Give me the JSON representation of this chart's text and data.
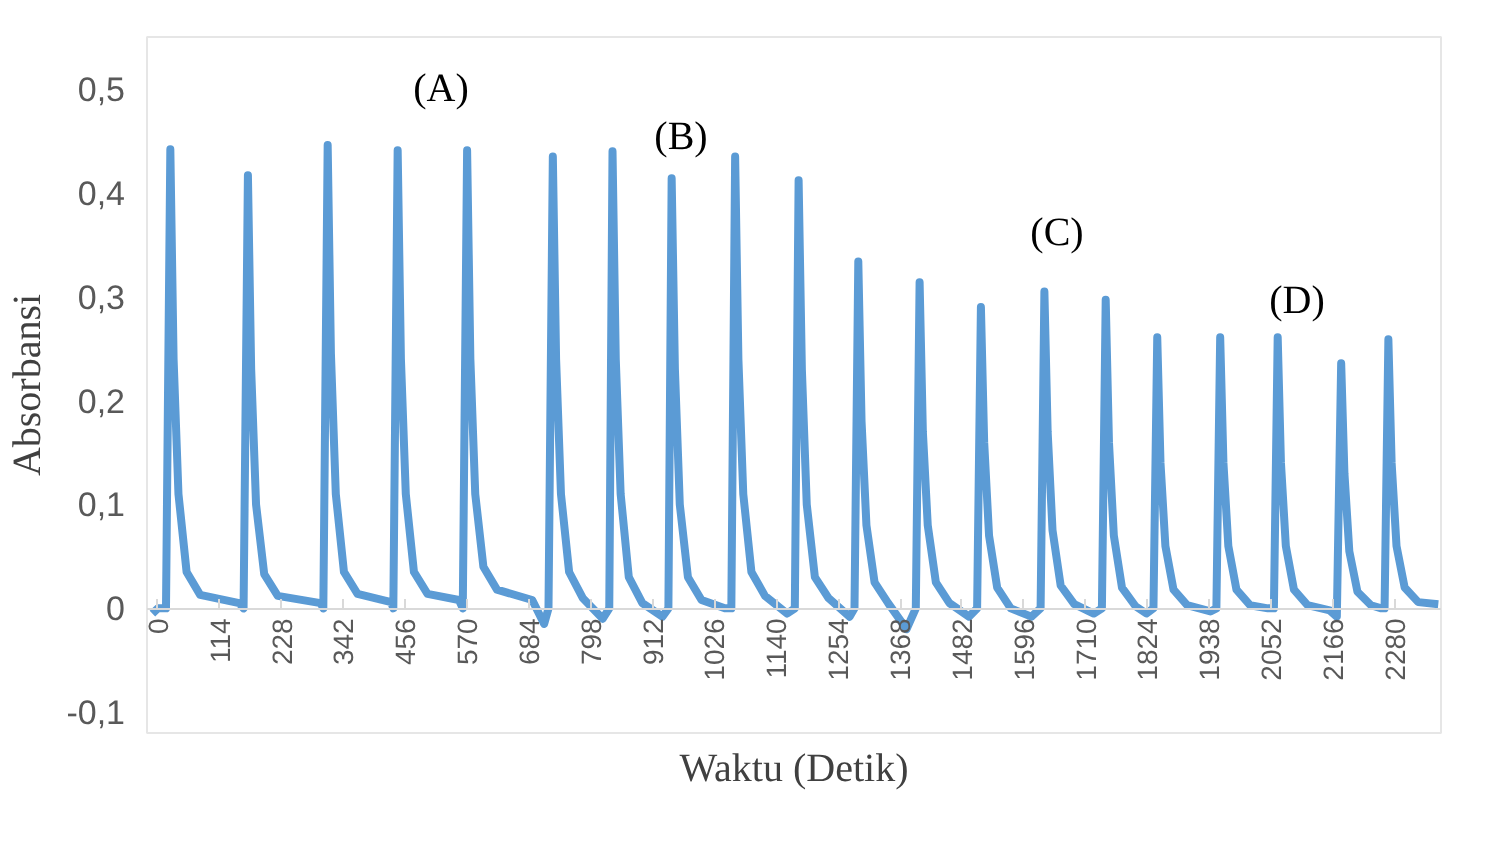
{
  "chart_data": {
    "type": "line",
    "xlabel": "Waktu (Detik)",
    "ylabel": "Absorbansi",
    "xlim": [
      -20,
      2365
    ],
    "ylim": [
      -0.12,
      0.55
    ],
    "xticks": [
      0,
      114,
      228,
      342,
      456,
      570,
      684,
      798,
      912,
      1026,
      1140,
      1254,
      1368,
      1482,
      1596,
      1710,
      1824,
      1938,
      2052,
      2166,
      2280
    ],
    "yticks": [
      {
        "value": -0.1,
        "label": "-0,1"
      },
      {
        "value": 0,
        "label": "0"
      },
      {
        "value": 0.1,
        "label": "0,1"
      },
      {
        "value": 0.2,
        "label": "0,2"
      },
      {
        "value": 0.3,
        "label": "0,3"
      },
      {
        "value": 0.4,
        "label": "0,4"
      },
      {
        "value": 0.5,
        "label": "0,5"
      }
    ],
    "grid": false,
    "marker": "none",
    "line_style": "solid",
    "annotations": [
      "(A)",
      "(B)",
      "(C)",
      "(D)"
    ],
    "series": [
      {
        "color": "#5b9bd5",
        "x": [
          -10,
          0,
          15,
          23,
          29,
          38,
          53,
          78,
          150,
          158,
          166,
          172,
          181,
          196,
          221,
          300,
          305,
          313,
          319,
          328,
          343,
          368,
          430,
          434,
          442,
          448,
          457,
          472,
          497,
          555,
          562,
          570,
          576,
          585,
          600,
          625,
          690,
          712,
          720,
          728,
          734,
          743,
          758,
          783,
          820,
          832,
          838,
          844,
          853,
          868,
          893,
          930,
          941,
          947,
          953,
          962,
          977,
          1002,
          1045,
          1057,
          1064,
          1070,
          1079,
          1094,
          1119,
          1160,
          1174,
          1181,
          1187,
          1196,
          1211,
          1236,
          1275,
          1284,
          1291,
          1297,
          1306,
          1321,
          1346,
          1380,
          1397,
          1404,
          1410,
          1419,
          1434,
          1459,
          1495,
          1510,
          1517,
          1523,
          1532,
          1547,
          1572,
          1610,
          1627,
          1634,
          1640,
          1649,
          1664,
          1689,
          1725,
          1740,
          1747,
          1753,
          1762,
          1777,
          1802,
          1822,
          1835,
          1842,
          1848,
          1857,
          1872,
          1897,
          1940,
          1951,
          1958,
          1964,
          1973,
          1988,
          2013,
          2046,
          2057,
          2064,
          2070,
          2079,
          2094,
          2119,
          2160,
          2173,
          2181,
          2187,
          2196,
          2211,
          2236,
          2255,
          2261,
          2268,
          2274,
          2283,
          2298,
          2323,
          2360
        ],
        "values": [
          -0.005,
          0.0,
          0.0,
          0.442,
          0.24,
          0.11,
          0.035,
          0.013,
          0.005,
          0.0,
          0.417,
          0.23,
          0.1,
          0.033,
          0.012,
          0.005,
          0.0,
          0.446,
          0.245,
          0.11,
          0.035,
          0.014,
          0.006,
          0.0,
          0.441,
          0.24,
          0.11,
          0.035,
          0.014,
          0.008,
          0.0,
          0.441,
          0.24,
          0.11,
          0.04,
          0.018,
          0.008,
          -0.015,
          0.0,
          0.435,
          0.24,
          0.11,
          0.035,
          0.01,
          -0.01,
          0.0,
          0.44,
          0.24,
          0.11,
          0.03,
          0.005,
          -0.008,
          0.0,
          0.414,
          0.23,
          0.1,
          0.03,
          0.008,
          0.0,
          0.0,
          0.435,
          0.24,
          0.11,
          0.035,
          0.012,
          -0.005,
          0.0,
          0.412,
          0.23,
          0.1,
          0.03,
          0.01,
          -0.008,
          0.0,
          0.334,
          0.18,
          0.08,
          0.025,
          0.005,
          -0.02,
          0.0,
          0.314,
          0.17,
          0.08,
          0.025,
          0.005,
          -0.008,
          0.0,
          0.29,
          0.16,
          0.07,
          0.02,
          0.0,
          -0.008,
          0.0,
          0.305,
          0.17,
          0.075,
          0.022,
          0.004,
          -0.005,
          0.0,
          0.297,
          0.16,
          0.07,
          0.02,
          0.002,
          -0.005,
          0.0,
          0.261,
          0.14,
          0.06,
          0.018,
          0.003,
          -0.003,
          0.0,
          0.261,
          0.14,
          0.06,
          0.018,
          0.003,
          0.0,
          0.0,
          0.261,
          0.14,
          0.06,
          0.018,
          0.003,
          -0.002,
          -0.008,
          0.236,
          0.13,
          0.055,
          0.016,
          0.003,
          0.0,
          0.0,
          0.259,
          0.14,
          0.06,
          0.02,
          0.006,
          0.004
        ]
      }
    ]
  }
}
